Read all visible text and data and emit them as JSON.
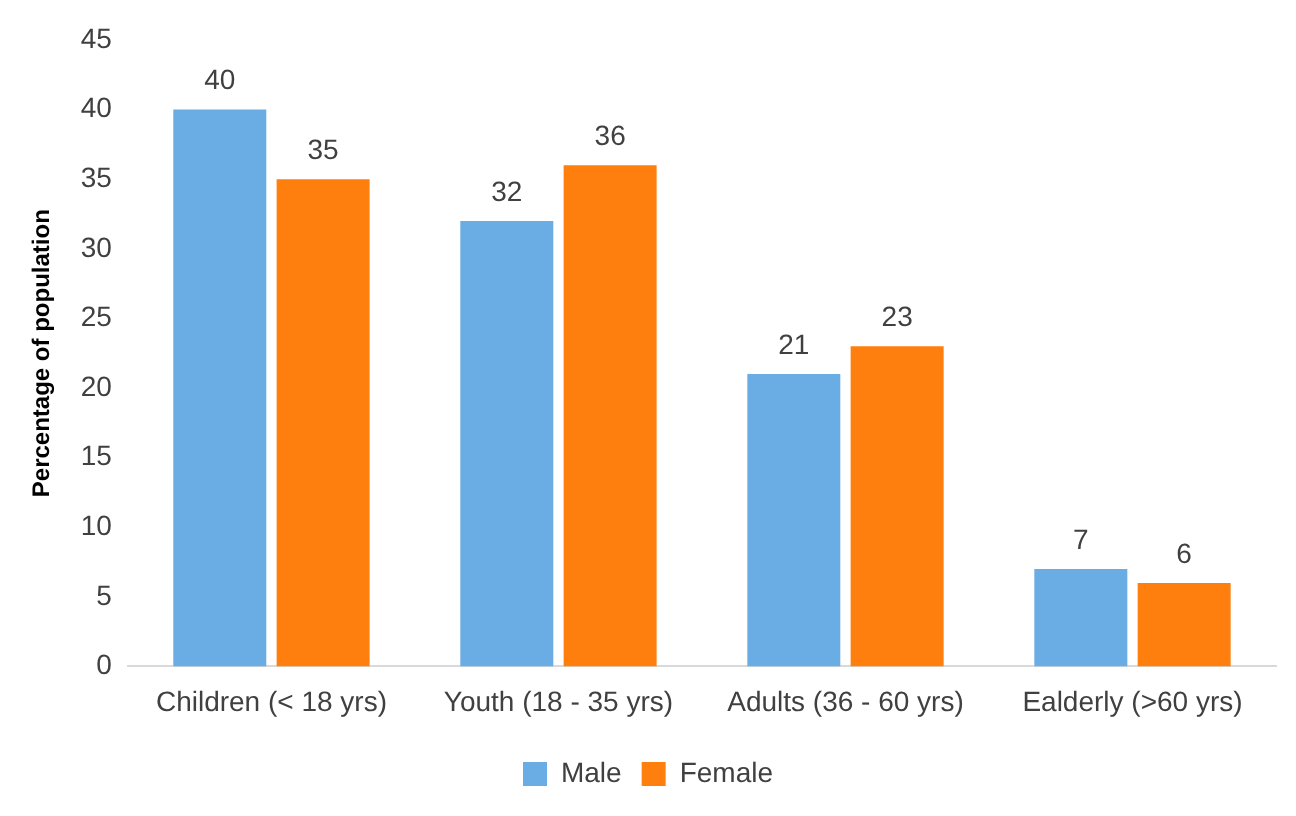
{
  "chart_data": {
    "type": "bar",
    "ylabel": "Percentage of population",
    "categories": [
      "Children (< 18 yrs)",
      "Youth (18 - 35 yrs)",
      "Adults (36 - 60 yrs)",
      "Ealderly (>60 yrs)"
    ],
    "series": [
      {
        "name": "Male",
        "color": "#6aace4",
        "values": [
          40,
          32,
          21,
          7
        ]
      },
      {
        "name": "Female",
        "color": "#ff7f0e",
        "values": [
          35,
          36,
          23,
          6
        ]
      }
    ],
    "ylim": [
      0,
      45
    ],
    "yticks": [
      0,
      5,
      10,
      15,
      20,
      25,
      30,
      35,
      40,
      45
    ],
    "grid": false,
    "legend": "bottom",
    "data_labels": true
  }
}
